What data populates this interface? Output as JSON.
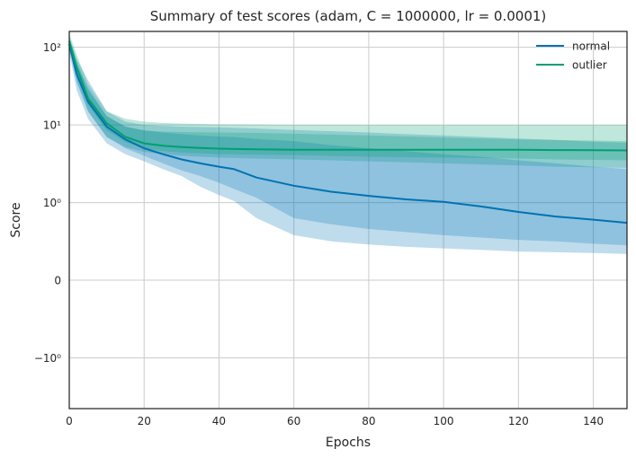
{
  "chart_data": {
    "type": "line",
    "title": "Summary of test scores (adam, C = 1000000, lr = 0.0001)",
    "xlabel": "Epochs",
    "ylabel": "Score",
    "xlim": [
      0,
      149
    ],
    "yscale": "symlog",
    "ylim": [
      -4.5,
      160
    ],
    "x_ticks": [
      0,
      20,
      40,
      60,
      80,
      100,
      120,
      140
    ],
    "x_tick_labels": [
      "0",
      "20",
      "40",
      "60",
      "80",
      "100",
      "120",
      "140"
    ],
    "y_ticks": [
      -1,
      0,
      1,
      10,
      100
    ],
    "y_tick_labels": [
      "−10⁰",
      "0",
      "10⁰",
      "10¹",
      "10²"
    ],
    "grid": true,
    "legend_position": "top-right",
    "series": [
      {
        "name": "normal",
        "color": "#0072b2",
        "x": [
          0,
          2,
          5,
          10,
          15,
          20,
          25,
          30,
          35,
          40,
          44,
          50,
          60,
          70,
          80,
          90,
          100,
          110,
          120,
          130,
          140,
          149
        ],
        "mean": [
          110,
          45,
          20,
          9.5,
          6.5,
          5.0,
          4.2,
          3.6,
          3.2,
          2.9,
          2.7,
          2.1,
          1.65,
          1.38,
          1.22,
          1.1,
          1.02,
          0.95,
          0.88,
          0.82,
          0.78,
          0.74
        ],
        "band_inner": [
          [
            95,
            125
          ],
          [
            35,
            60
          ],
          [
            15,
            30
          ],
          [
            7,
            13
          ],
          [
            5,
            9.5
          ],
          [
            4,
            8.5
          ],
          [
            3.2,
            8
          ],
          [
            2.6,
            7.6
          ],
          [
            2.2,
            7.3
          ],
          [
            1.8,
            7.1
          ],
          [
            1.5,
            7.0
          ],
          [
            1.15,
            6.6
          ],
          [
            0.8,
            6.2
          ],
          [
            0.72,
            5.5
          ],
          [
            0.66,
            5.0
          ],
          [
            0.62,
            4.6
          ],
          [
            0.58,
            4.2
          ],
          [
            0.55,
            3.9
          ],
          [
            0.52,
            3.5
          ],
          [
            0.5,
            3.2
          ],
          [
            0.47,
            2.9
          ],
          [
            0.45,
            2.7
          ]
        ],
        "band_outer": [
          [
            85,
            135
          ],
          [
            28,
            70
          ],
          [
            12,
            38
          ],
          [
            5.8,
            15
          ],
          [
            4.2,
            11
          ],
          [
            3.4,
            10
          ],
          [
            2.7,
            9.7
          ],
          [
            2.2,
            9.5
          ],
          [
            1.6,
            9.4
          ],
          [
            1.25,
            9.3
          ],
          [
            1.05,
            9.2
          ],
          [
            0.8,
            9.0
          ],
          [
            0.58,
            8.6
          ],
          [
            0.5,
            8.3
          ],
          [
            0.46,
            8.0
          ],
          [
            0.43,
            7.6
          ],
          [
            0.41,
            7.3
          ],
          [
            0.39,
            7.0
          ],
          [
            0.37,
            6.7
          ],
          [
            0.36,
            6.4
          ],
          [
            0.35,
            6.1
          ],
          [
            0.34,
            5.9
          ]
        ]
      },
      {
        "name": "outlier",
        "color": "#009e73",
        "x": [
          0,
          2,
          5,
          10,
          15,
          20,
          25,
          30,
          35,
          40,
          50,
          60,
          70,
          80,
          90,
          100,
          110,
          120,
          130,
          140,
          149
        ],
        "mean": [
          120,
          55,
          22,
          10.5,
          7.0,
          5.8,
          5.4,
          5.2,
          5.05,
          4.95,
          4.85,
          4.8,
          4.8,
          4.8,
          4.8,
          4.8,
          4.8,
          4.78,
          4.75,
          4.72,
          4.7
        ],
        "band_inner": [
          [
            105,
            135
          ],
          [
            45,
            68
          ],
          [
            18,
            28
          ],
          [
            8.5,
            13
          ],
          [
            6,
            9.5
          ],
          [
            5,
            8.5
          ],
          [
            4.6,
            8.2
          ],
          [
            4.4,
            8.1
          ],
          [
            4.3,
            8.05
          ],
          [
            4.2,
            8.0
          ],
          [
            4.15,
            7.9
          ],
          [
            4.1,
            7.7
          ],
          [
            4.0,
            7.5
          ],
          [
            3.9,
            7.3
          ],
          [
            3.85,
            7.1
          ],
          [
            3.8,
            6.9
          ],
          [
            3.75,
            6.7
          ],
          [
            3.7,
            6.5
          ],
          [
            3.6,
            6.4
          ],
          [
            3.55,
            6.3
          ],
          [
            3.5,
            6.2
          ]
        ],
        "band_outer": [
          [
            95,
            150
          ],
          [
            38,
            80
          ],
          [
            15,
            34
          ],
          [
            7,
            15
          ],
          [
            5.2,
            12
          ],
          [
            4.5,
            11
          ],
          [
            4.2,
            10.6
          ],
          [
            4.0,
            10.4
          ],
          [
            3.9,
            10.3
          ],
          [
            3.8,
            10.2
          ],
          [
            3.7,
            10.1
          ],
          [
            3.6,
            10.0
          ],
          [
            3.5,
            10.0
          ],
          [
            3.4,
            10.0
          ],
          [
            3.3,
            10.0
          ],
          [
            3.2,
            10.0
          ],
          [
            3.1,
            10.0
          ],
          [
            3.0,
            10.0
          ],
          [
            2.9,
            10.0
          ],
          [
            2.85,
            10.0
          ],
          [
            2.8,
            10.0
          ]
        ]
      }
    ]
  }
}
